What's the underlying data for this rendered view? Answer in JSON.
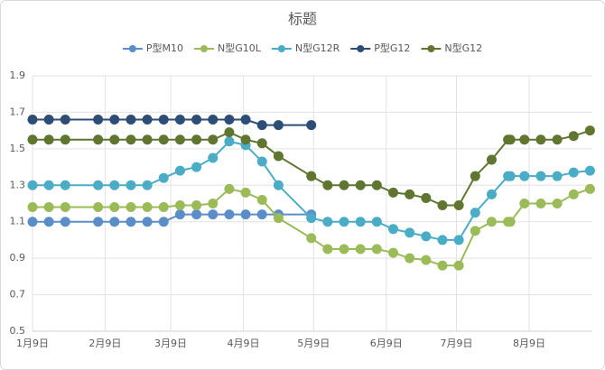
{
  "chart_data": {
    "type": "line",
    "title": "标题",
    "x": [
      "01-09",
      "01-16",
      "01-23",
      "02-06",
      "02-13",
      "02-20",
      "02-27",
      "03-06",
      "03-13",
      "03-20",
      "03-27",
      "04-03",
      "04-10",
      "04-17",
      "04-24",
      "05-08",
      "05-15",
      "05-22",
      "05-29",
      "06-05",
      "06-12",
      "06-19",
      "06-26",
      "07-03",
      "07-10",
      "07-17",
      "07-24",
      "07-31",
      "08-01",
      "08-07",
      "08-14",
      "08-21",
      "08-28",
      "09-04"
    ],
    "series": [
      {
        "name": "P型M10",
        "color": "#5b8dc9",
        "values": [
          1.1,
          1.1,
          1.1,
          1.1,
          1.1,
          1.1,
          1.1,
          1.1,
          1.14,
          1.14,
          1.14,
          1.14,
          1.14,
          1.14,
          1.14,
          1.14,
          null,
          null,
          null,
          null,
          null,
          null,
          null,
          null,
          null,
          null,
          null,
          null,
          null,
          null,
          null,
          null,
          null,
          null
        ]
      },
      {
        "name": "N型G10L",
        "color": "#9bbb59",
        "values": [
          1.18,
          1.18,
          1.18,
          1.18,
          1.18,
          1.18,
          1.18,
          1.18,
          1.19,
          1.19,
          1.2,
          1.28,
          1.26,
          1.22,
          1.12,
          1.01,
          0.95,
          0.95,
          0.95,
          0.95,
          0.93,
          0.9,
          0.89,
          0.86,
          0.86,
          1.05,
          1.1,
          1.1,
          1.1,
          1.2,
          1.2,
          1.2,
          1.25,
          1.28
        ]
      },
      {
        "name": "N型G12R",
        "color": "#4bacc6",
        "values": [
          1.3,
          1.3,
          1.3,
          1.3,
          1.3,
          1.3,
          1.3,
          1.34,
          1.38,
          1.4,
          1.45,
          1.54,
          1.52,
          1.43,
          1.3,
          1.12,
          1.1,
          1.1,
          1.1,
          1.1,
          1.06,
          1.04,
          1.02,
          1.0,
          1.0,
          1.15,
          1.25,
          1.35,
          1.35,
          1.35,
          1.35,
          1.35,
          1.37,
          1.38
        ]
      },
      {
        "name": "P型G12",
        "color": "#2c4d75",
        "values": [
          1.66,
          1.66,
          1.66,
          1.66,
          1.66,
          1.66,
          1.66,
          1.66,
          1.66,
          1.66,
          1.66,
          1.66,
          1.66,
          1.63,
          1.63,
          1.63,
          null,
          null,
          null,
          null,
          null,
          null,
          null,
          null,
          null,
          null,
          null,
          null,
          null,
          null,
          null,
          null,
          null,
          null
        ]
      },
      {
        "name": "N型G12",
        "color": "#5f7530",
        "values": [
          1.55,
          1.55,
          1.55,
          1.55,
          1.55,
          1.55,
          1.55,
          1.55,
          1.55,
          1.55,
          1.55,
          1.59,
          1.55,
          1.53,
          1.46,
          1.35,
          1.3,
          1.3,
          1.3,
          1.3,
          1.26,
          1.25,
          1.23,
          1.19,
          1.19,
          1.35,
          1.44,
          1.55,
          1.55,
          1.55,
          1.55,
          1.55,
          1.57,
          1.6
        ]
      }
    ],
    "xlim": [
      "01-09",
      "09-05"
    ],
    "xticks": [
      {
        "value": "01-09",
        "label": "1月9日"
      },
      {
        "value": "02-09",
        "label": "2月9日"
      },
      {
        "value": "03-09",
        "label": "3月9日"
      },
      {
        "value": "04-09",
        "label": "4月9日"
      },
      {
        "value": "05-09",
        "label": "5月9日"
      },
      {
        "value": "06-09",
        "label": "6月9日"
      },
      {
        "value": "07-09",
        "label": "7月9日"
      },
      {
        "value": "08-09",
        "label": "8月9日"
      }
    ],
    "ylim": [
      0.5,
      1.9
    ],
    "yticks": [
      0.5,
      0.7,
      0.9,
      1.1,
      1.3,
      1.5,
      1.7,
      1.9
    ],
    "grid": true,
    "legend": "top"
  }
}
